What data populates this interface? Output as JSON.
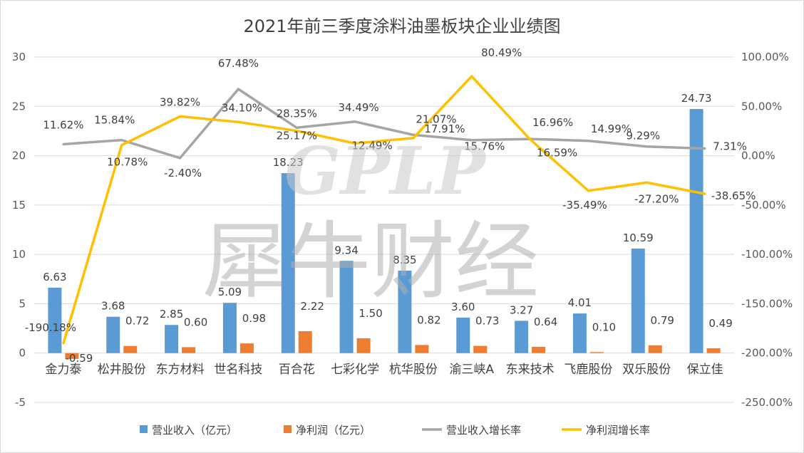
{
  "chart_data": {
    "type": "bar+line",
    "title": "2021年前三季度涂料油墨板块企业业绩图",
    "categories": [
      "金力泰",
      "松井股份",
      "东方材料",
      "世名科技",
      "百合花",
      "七彩化学",
      "杭华股份",
      "渝三峡A",
      "东来技术",
      "飞鹿股份",
      "双乐股份",
      "保立佳"
    ],
    "left_axis": {
      "min": -5,
      "max": 30,
      "step": 5,
      "ticks": [
        "-5",
        "0",
        "5",
        "10",
        "15",
        "20",
        "25",
        "30"
      ]
    },
    "right_axis": {
      "min": -250,
      "max": 100,
      "step": 50,
      "ticks": [
        "-250.00%",
        "-200.00%",
        "-150.00%",
        "-100.00%",
        "-50.00%",
        "0.00%",
        "50.00%",
        "100.00%"
      ]
    },
    "series": [
      {
        "name": "营业收入（亿元）",
        "kind": "bar",
        "axis": "left",
        "color": "#5b9bd5",
        "values": [
          6.63,
          3.68,
          2.85,
          5.09,
          18.23,
          9.34,
          8.35,
          3.6,
          3.27,
          4.01,
          10.59,
          24.73
        ],
        "labels": [
          "6.63",
          "3.68",
          "2.85",
          "5.09",
          "18.23",
          "9.34",
          "8.35",
          "3.60",
          "3.27",
          "4.01",
          "10.59",
          "24.73"
        ]
      },
      {
        "name": "净利润（亿元）",
        "kind": "bar",
        "axis": "left",
        "color": "#ed7d31",
        "values": [
          -0.59,
          0.72,
          0.6,
          0.98,
          2.22,
          1.5,
          0.82,
          0.73,
          0.64,
          0.1,
          0.79,
          0.49
        ],
        "labels": [
          "-0.59",
          "0.72",
          "0.60",
          "0.98",
          "2.22",
          "1.50",
          "0.82",
          "0.73",
          "0.64",
          "0.10",
          "0.79",
          "0.49"
        ]
      },
      {
        "name": "营业收入增长率",
        "kind": "line",
        "axis": "right",
        "color": "#a5a5a5",
        "values": [
          11.62,
          15.84,
          -2.4,
          67.48,
          28.35,
          34.49,
          21.07,
          15.76,
          16.96,
          14.99,
          9.29,
          7.31
        ],
        "labels": [
          "11.62%",
          "15.84%",
          "-2.40%",
          "67.48%",
          "28.35%",
          "34.49%",
          "21.07%",
          "15.76%",
          "16.96%",
          "14.99%",
          "9.29%",
          "7.31%"
        ]
      },
      {
        "name": "净利润增长率",
        "kind": "line",
        "axis": "right",
        "color": "#ffc000",
        "values": [
          -190.18,
          10.78,
          39.82,
          34.1,
          25.17,
          12.49,
          17.91,
          80.49,
          16.59,
          -35.49,
          -27.2,
          -38.65
        ],
        "labels": [
          "-190.18%",
          "10.78%",
          "39.82%",
          "34.10%",
          "25.17%",
          "12.49%",
          "17.91%",
          "80.49%",
          "16.59%",
          "-35.49%",
          "-27.20%",
          "-38.65%"
        ]
      }
    ],
    "legend_position": "bottom",
    "gridlines": true
  },
  "watermark": {
    "latin": "GPLP",
    "cjk": "犀牛财经"
  }
}
